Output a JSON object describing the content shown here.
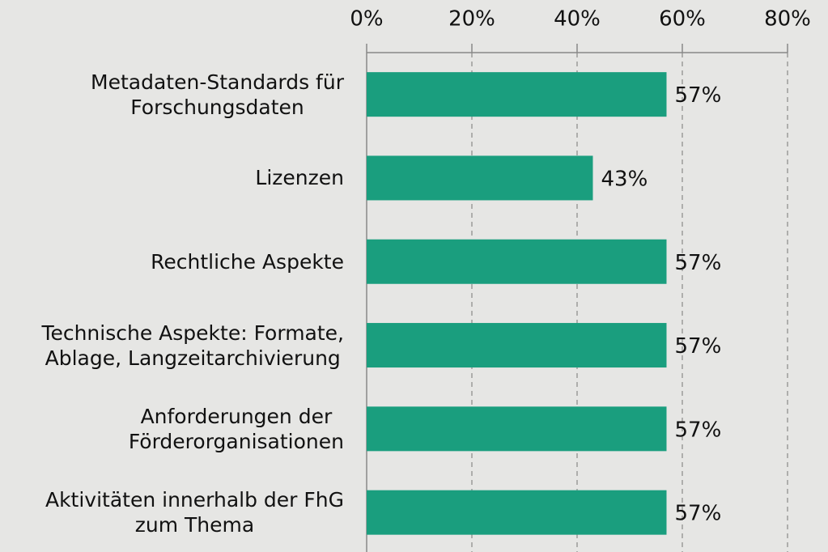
{
  "chart_data": {
    "type": "bar",
    "orientation": "horizontal",
    "categories": [
      "Metadaten-Standards für\nForschungsdaten",
      "Lizenzen",
      "Rechtliche Aspekte",
      "Technische Aspekte: Formate,\nAblage, Langzeitarchivierung",
      "Anforderungen der \nFörderorganisationen",
      "Aktivitäten innerhalb der FhG\nzum Thema"
    ],
    "values": [
      57,
      43,
      57,
      57,
      57,
      57
    ],
    "value_labels": [
      "57%",
      "43%",
      "57%",
      "57%",
      "57%",
      "57%"
    ],
    "color": "#1a9e7e",
    "xlim": [
      0,
      80
    ],
    "xticks": [
      {
        "value": 0,
        "label": "0%"
      },
      {
        "value": 20,
        "label": "20%"
      },
      {
        "value": 40,
        "label": "40%"
      },
      {
        "value": 60,
        "label": "60%"
      },
      {
        "value": 80,
        "label": "80%"
      }
    ],
    "grid": true
  }
}
